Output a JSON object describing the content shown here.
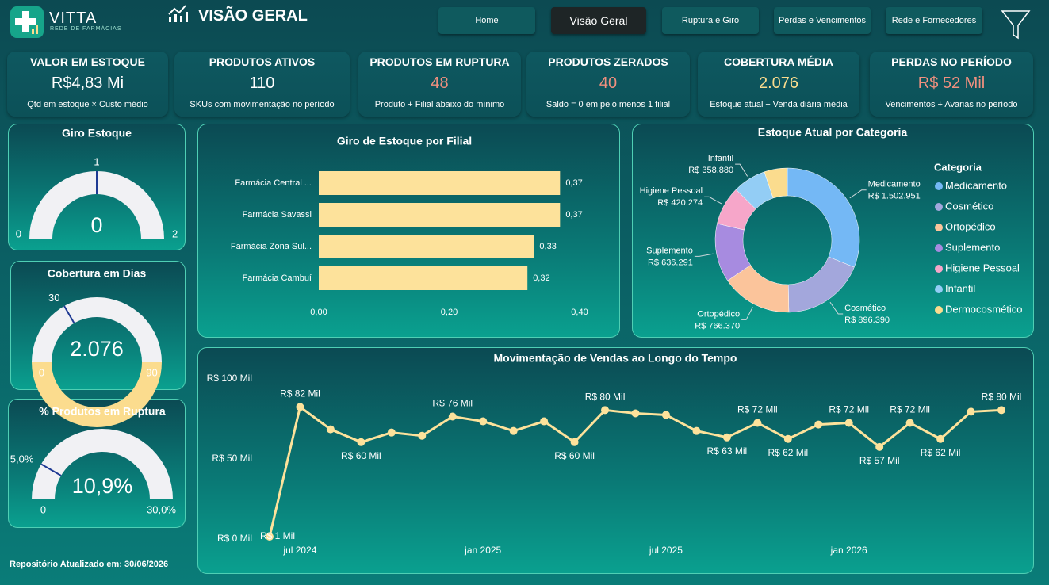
{
  "header": {
    "brand": "VITTA",
    "tagline": "REDE DE FARMÁCIAS",
    "page_title": "VISÃO GERAL"
  },
  "nav": {
    "items": [
      "Home",
      "Visão Geral",
      "Ruptura e Giro",
      "Perdas e Vencimentos",
      "Rede e Fornecedores"
    ],
    "active": 1
  },
  "kpis": [
    {
      "title": "VALOR EM ESTOQUE",
      "value": "R$4,83 Mi",
      "note": "Qtd em estoque × Custo médio",
      "color": "#ffffff"
    },
    {
      "title": "PRODUTOS ATIVOS",
      "value": "110",
      "note": "SKUs com movimentação no período",
      "color": "#ffffff"
    },
    {
      "title": "PRODUTOS EM RUPTURA",
      "value": "48",
      "note": "Produto + Filial abaixo do mínimo",
      "color": "#f0907f"
    },
    {
      "title": "PRODUTOS ZERADOS",
      "value": "40",
      "note": "Saldo = 0 em pelo menos 1 filial",
      "color": "#f0907f"
    },
    {
      "title": "COBERTURA MÉDIA",
      "value": "2.076",
      "note": "Estoque atual ÷ Venda diária média",
      "color": "#fbdc8e"
    },
    {
      "title": "PERDAS NO PERÍODO",
      "value": "R$ 52 Mil",
      "note": "Vencimentos + Avarias no período",
      "color": "#f0907f"
    }
  ],
  "footer": "Repositório Atualizado em: 30/06/2026",
  "chart_data": [
    {
      "type": "gauge",
      "title": "Giro Estoque",
      "value": 0.35,
      "value_label": "0",
      "ylim": [
        0,
        2
      ],
      "yticks": [
        0,
        2
      ],
      "target": 1,
      "color": "#fbdc8e",
      "track_color": "#f1f1f4",
      "target_color": "#1f3a93"
    },
    {
      "type": "gauge",
      "title": "Cobertura em Dias",
      "value": 2076,
      "value_label": "2.076",
      "ylim": [
        0,
        90
      ],
      "yticks": [
        0,
        90
      ],
      "target": 30,
      "color": "#fbdc8e",
      "track_color": "#f1f1f4",
      "target_color": "#1f3a93"
    },
    {
      "type": "gauge",
      "title": "% Produtos em Ruptura",
      "value": 10.9,
      "value_label": "10,9%",
      "ylim": [
        0,
        30
      ],
      "yticks": [
        0,
        {
          "value": 30,
          "label": "30,0%"
        }
      ],
      "target": {
        "value": 5,
        "label": "5,0%"
      },
      "color": "#fbdc8e",
      "track_color": "#f1f1f4",
      "target_color": "#1f3a93"
    },
    {
      "type": "bar",
      "orientation": "horizontal",
      "title": "Giro de Estoque por Filial",
      "categories": [
        "Farmácia Central ...",
        "Farmácia Savassi",
        "Farmácia Zona Sul...",
        "Farmácia Cambuí"
      ],
      "values": [
        0.37,
        0.37,
        0.33,
        0.32
      ],
      "value_labels": [
        "0,37",
        "0,37",
        "0,33",
        "0,32"
      ],
      "xlim": [
        0,
        0.4
      ],
      "xticks": [
        {
          "value": 0,
          "label": "0,00"
        },
        {
          "value": 0.2,
          "label": "0,20"
        },
        {
          "value": 0.4,
          "label": "0,40"
        }
      ],
      "color": "#fde29b"
    },
    {
      "type": "donut",
      "title": "Estoque Atual por Categoria",
      "legend_title": "Categoria",
      "legend": "right",
      "categories": [
        "Medicamento",
        "Cosmético",
        "Ortopédico",
        "Suplemento",
        "Higiene Pessoal",
        "Infantil",
        "Dermocosmético"
      ],
      "values": [
        1502951,
        896390,
        766370,
        636291,
        420274,
        358880,
        250000
      ],
      "value_labels": [
        "R$ 1.502.951",
        "R$ 896.390",
        "R$ 766.370",
        "R$ 636.291",
        "R$ 420.274",
        "R$ 358.880",
        null
      ],
      "colors": [
        "#74b8f5",
        "#a3a7dc",
        "#fbc49b",
        "#a78be0",
        "#f6a6c9",
        "#93cdf5",
        "#fbdc8e"
      ]
    },
    {
      "type": "line",
      "title": "Movimentação de Vendas ao Longo do Tempo",
      "x": [
        "2024-06",
        "2024-07",
        "2024-08",
        "2024-09",
        "2024-10",
        "2024-11",
        "2024-12",
        "2025-01",
        "2025-02",
        "2025-03",
        "2025-04",
        "2025-05",
        "2025-06",
        "2025-07",
        "2025-08",
        "2025-09",
        "2025-10",
        "2025-11",
        "2025-12",
        "2026-01",
        "2026-02",
        "2026-03",
        "2026-04",
        "2026-05",
        "2026-06"
      ],
      "values": [
        1,
        82,
        68,
        60,
        66,
        64,
        76,
        73,
        67,
        73,
        60,
        80,
        78,
        77,
        67,
        63,
        72,
        62,
        71,
        72,
        57,
        72,
        62,
        79,
        80
      ],
      "value_labels": [
        "R$ 1 Mil",
        "R$ 82 Mil",
        null,
        "R$ 60 Mil",
        null,
        null,
        "R$ 76 Mil",
        null,
        null,
        null,
        "R$ 60 Mil",
        "R$ 80 Mil",
        null,
        null,
        null,
        "R$ 63 Mil",
        "R$ 72 Mil",
        "R$ 62 Mil",
        null,
        "R$ 72 Mil",
        "R$ 57 Mil",
        "R$ 72 Mil",
        "R$ 62 Mil",
        null,
        "R$ 80 Mil"
      ],
      "ylim": [
        0,
        100
      ],
      "yticks": [
        {
          "value": 0,
          "label": "R$ 0 Mil"
        },
        {
          "value": 50,
          "label": "R$ 50 Mil"
        },
        {
          "value": 100,
          "label": "R$ 100 Mil"
        }
      ],
      "xticks": [
        {
          "value": "2024-07",
          "label": "jul 2024"
        },
        {
          "value": "2025-01",
          "label": "jan 2025"
        },
        {
          "value": "2025-07",
          "label": "jul 2025"
        },
        {
          "value": "2026-01",
          "label": "jan 2026"
        }
      ],
      "color": "#fde29b"
    }
  ]
}
